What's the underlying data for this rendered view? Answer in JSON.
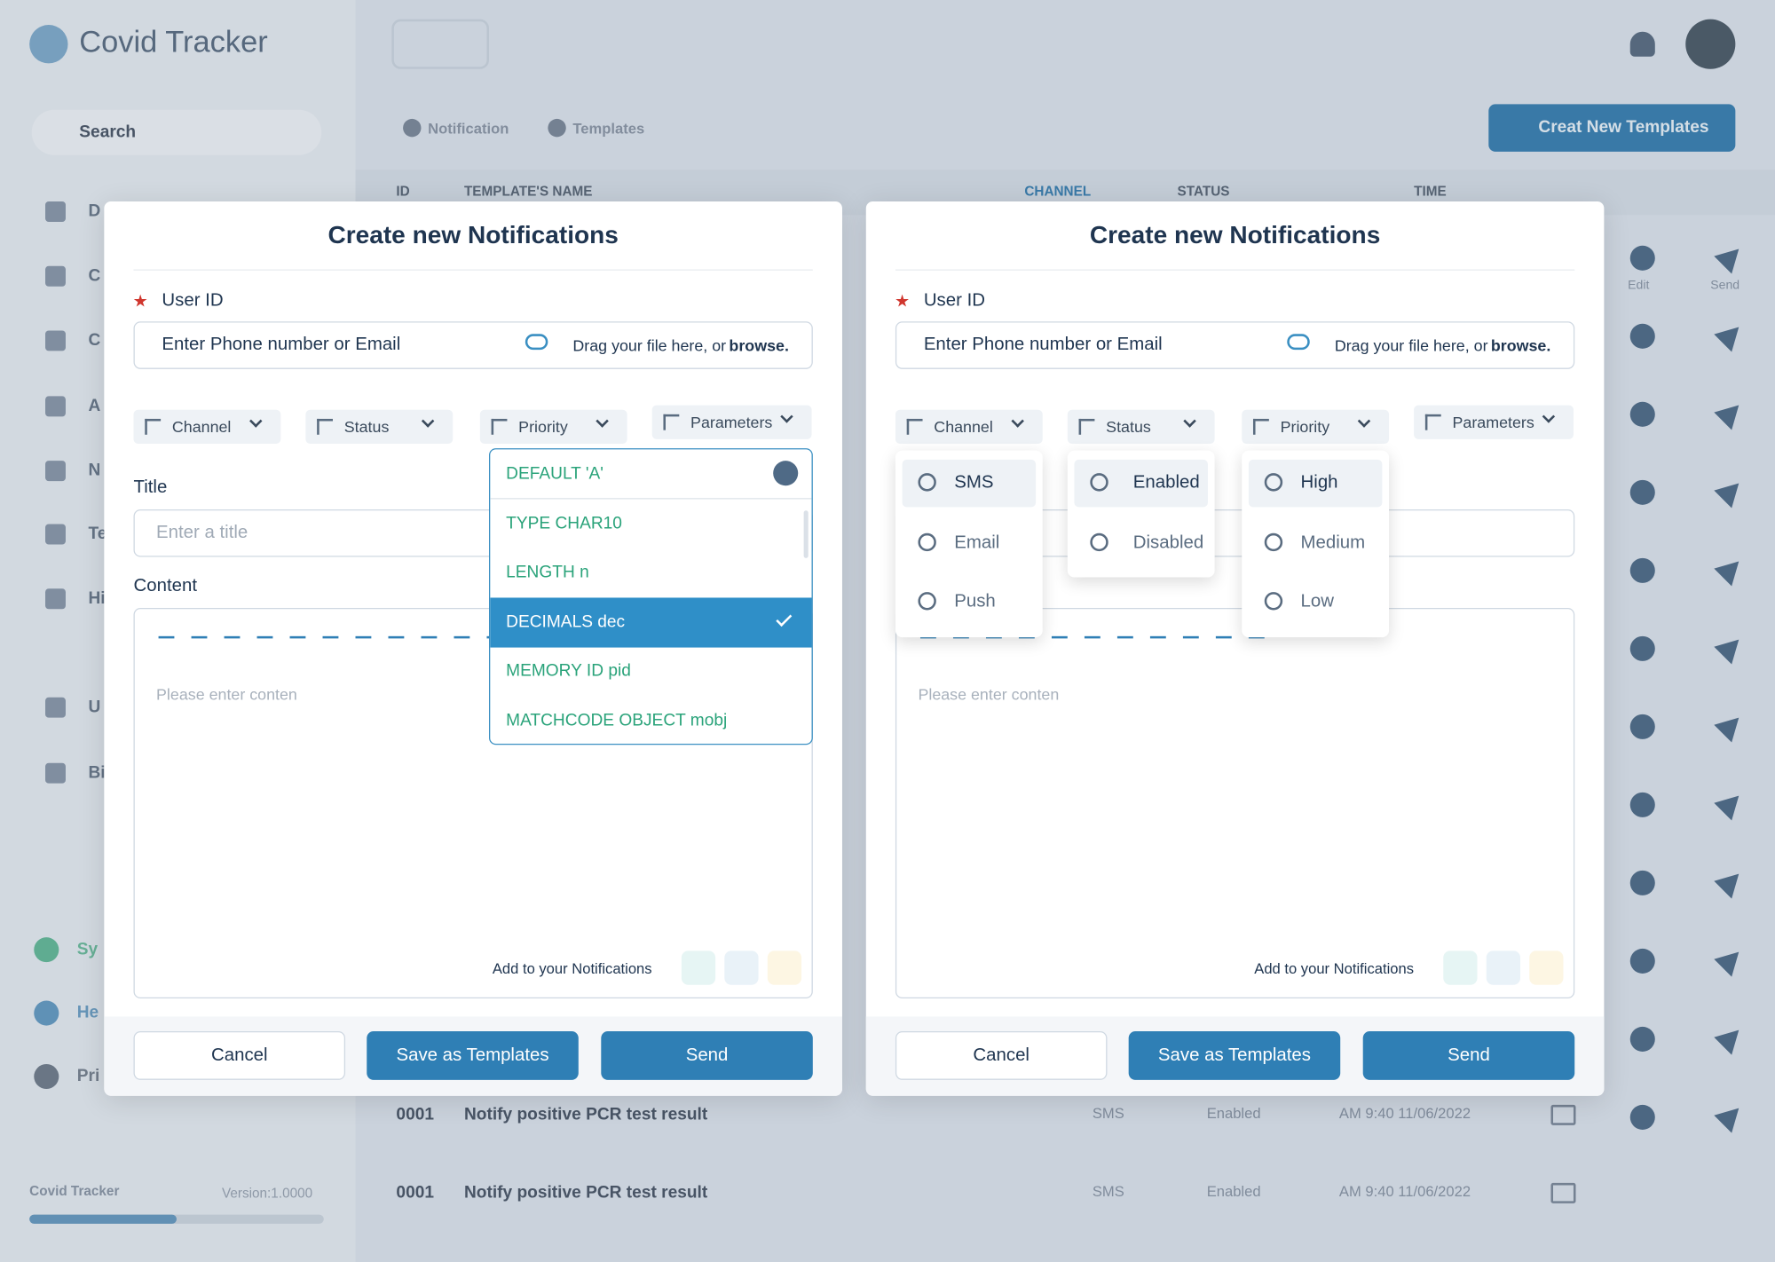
{
  "app": {
    "name": "Covid Tracker",
    "search": "Search",
    "nav": [
      "D",
      "C",
      "C",
      "A",
      "N",
      "Te",
      "Hi",
      "U",
      "Bi"
    ],
    "bottom_nav": [
      "Sy",
      "He",
      "Pri"
    ],
    "footer": {
      "name": "Covid Tracker",
      "version": "Version:1.0000"
    }
  },
  "breadcrumb": [
    "Notification",
    "Templates"
  ],
  "create_button": "Creat New Templates",
  "table": {
    "headers": [
      "ID",
      "TEMPLATE'S NAME",
      "CHANNEL",
      "STATUS",
      "TIME"
    ],
    "actions": [
      "Edit",
      "Send"
    ],
    "rows": [
      [
        "0001",
        "Notify positive PCR test result",
        "SMS",
        "Enabled",
        "AM 9:40 11/06/2022"
      ],
      [
        "0001",
        "Notify positive PCR test result",
        "SMS",
        "Enabled",
        "AM 9:40 11/06/2022"
      ]
    ]
  },
  "modals": [
    {
      "title": "Create new Notifications",
      "user_id_label": "User ID",
      "user_id_placeholder": "Enter Phone number or Email",
      "upload": {
        "text": "Drag your file here, or",
        "link": "browse."
      },
      "filters": [
        "Channel",
        "Status",
        "Priority",
        "Parameters"
      ],
      "title_label": "Title",
      "title_placeholder": "Enter a title",
      "content_label": "Content",
      "content_placeholder": "Please enter conten",
      "add_label": "Add to your Notifications",
      "buttons": [
        "Cancel",
        "Save as Templates",
        "Send"
      ],
      "parameters_options": [
        "DEFAULT 'A'",
        "TYPE CHAR10",
        "LENGTH n",
        "DECIMALS dec",
        "MEMORY ID pid",
        "MATCHCODE OBJECT mobj"
      ],
      "selected_parameter": 3
    },
    {
      "title": "Create new Notifications",
      "user_id_label": "User ID",
      "user_id_placeholder": "Enter Phone number or Email",
      "upload": {
        "text": "Drag your file here, or",
        "link": "browse."
      },
      "filters": [
        "Channel",
        "Status",
        "Priority",
        "Parameters"
      ],
      "content_placeholder": "Please enter conten",
      "add_label": "Add to your Notifications",
      "buttons": [
        "Cancel",
        "Save as Templates",
        "Send"
      ],
      "channel_options": [
        "SMS",
        "Email",
        "Push"
      ],
      "status_options": [
        "Enabled",
        "Disabled"
      ],
      "priority_options": [
        "High",
        "Medium",
        "Low"
      ]
    }
  ]
}
